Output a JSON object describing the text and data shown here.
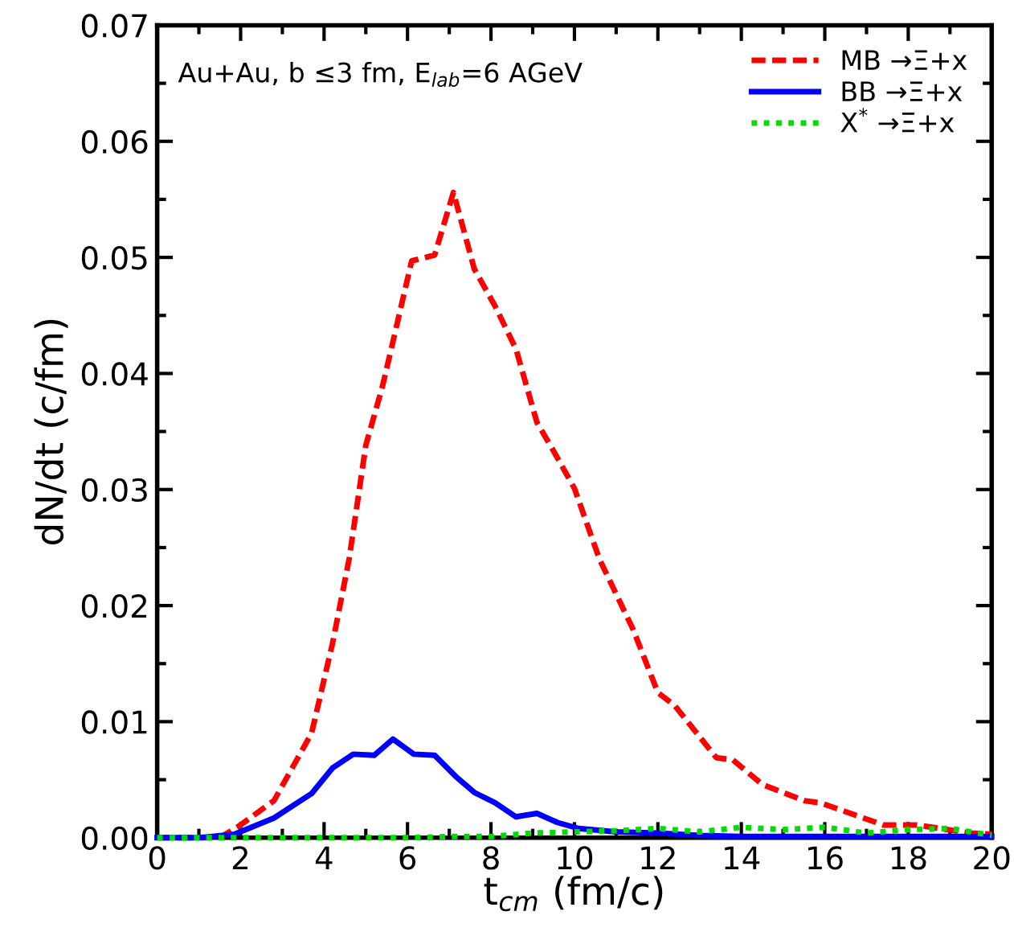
{
  "chart_data": {
    "type": "line",
    "xlabel": "t$_{cm}$ (fm/c)",
    "ylabel": "dN/dt (c/fm)",
    "annotations": [
      "Au+Au, b ≤3 fm, E$_{lab}$=6 AGeV"
    ],
    "xlim": [
      0,
      20
    ],
    "ylim": [
      0,
      0.07
    ],
    "xticks": [
      0,
      2,
      4,
      6,
      8,
      10,
      12,
      14,
      16,
      18,
      20
    ],
    "yticks": [
      {
        "value": 0,
        "label": "0.00"
      },
      {
        "value": 0.01,
        "label": "0.01"
      },
      {
        "value": 0.02,
        "label": "0.02"
      },
      {
        "value": 0.03,
        "label": "0.03"
      },
      {
        "value": 0.04,
        "label": "0.04"
      },
      {
        "value": 0.05,
        "label": "0.05"
      },
      {
        "value": 0.06,
        "label": "0.06"
      },
      {
        "value": 0.07,
        "label": "0.07"
      }
    ],
    "grid": false,
    "legend": "top right",
    "series": [
      {
        "name": "MB →Ξ+x",
        "color": "#ff0000",
        "line_style": "dashed",
        "x": [
          0,
          1,
          1.5,
          1.96,
          2.8,
          3.7,
          4.2,
          4.6,
          5.0,
          5.4,
          5.7,
          6.1,
          6.65,
          7.1,
          7.6,
          8.1,
          8.6,
          9.1,
          9.55,
          10.0,
          10.6,
          11.4,
          12.0,
          12.4,
          13.4,
          13.8,
          14.5,
          15.5,
          15.9,
          17.4,
          18.2,
          19.5,
          20
        ],
        "values": [
          0,
          0,
          0,
          0.001,
          0.0032,
          0.009,
          0.0167,
          0.024,
          0.0338,
          0.0389,
          0.0435,
          0.0497,
          0.0502,
          0.0556,
          0.049,
          0.0458,
          0.0421,
          0.0358,
          0.033,
          0.0301,
          0.024,
          0.018,
          0.0125,
          0.0114,
          0.0069,
          0.0067,
          0.0046,
          0.0032,
          0.003,
          0.0011,
          0.0011,
          0.0004,
          0.0003
        ]
      },
      {
        "name": "BB →Ξ+x",
        "color": "#0000ff",
        "line_style": "solid",
        "x": [
          0,
          1,
          1.85,
          2.8,
          3.7,
          4.2,
          4.7,
          5.2,
          5.65,
          6.15,
          6.65,
          7.15,
          7.6,
          8.1,
          8.6,
          9.1,
          9.6,
          10.1,
          11,
          12,
          13,
          14,
          16,
          18,
          20
        ],
        "values": [
          0,
          0,
          0.0003,
          0.0017,
          0.0038,
          0.006,
          0.0072,
          0.0071,
          0.0085,
          0.0072,
          0.0071,
          0.0053,
          0.0039,
          0.003,
          0.0018,
          0.0021,
          0.0013,
          0.0008,
          0.0005,
          0.0004,
          0.0002,
          0.0001,
          0.0001,
          0.0001,
          0.0001
        ]
      },
      {
        "name": "X$^{*}$ →Ξ+x",
        "color": "#00dd00",
        "line_style": "dotted",
        "x": [
          0,
          2,
          4,
          6,
          7,
          8,
          9,
          10,
          11,
          12,
          13,
          14,
          15,
          16,
          17,
          18,
          19,
          20
        ],
        "values": [
          0,
          0,
          0,
          0,
          0.0001,
          0.0001,
          0.0004,
          0.0005,
          0.0006,
          0.0008,
          0.0005,
          0.0009,
          0.0007,
          0.0009,
          0.0004,
          0.0007,
          0.0008,
          0.0002
        ]
      }
    ]
  }
}
